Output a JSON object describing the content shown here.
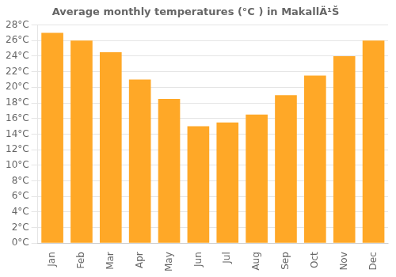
{
  "chart_data": {
    "type": "bar",
    "title": "Average monthly temperatures (°C ) in MakallÄ¹Š",
    "categories": [
      "Jan",
      "Feb",
      "Mar",
      "Apr",
      "May",
      "Jun",
      "Jul",
      "Aug",
      "Sep",
      "Oct",
      "Nov",
      "Dec"
    ],
    "values": [
      27.0,
      26.0,
      24.5,
      21.0,
      18.5,
      15.0,
      15.5,
      16.5,
      19.0,
      21.5,
      24.0,
      26.0
    ],
    "color": "#FFA827",
    "ylim": [
      0,
      28
    ],
    "yticks": [
      {
        "value": 0,
        "label": "0°C"
      },
      {
        "value": 2,
        "label": "2°C"
      },
      {
        "value": 4,
        "label": "4°C"
      },
      {
        "value": 6,
        "label": "6°C"
      },
      {
        "value": 8,
        "label": "8°C"
      },
      {
        "value": 10,
        "label": "10°C"
      },
      {
        "value": 12,
        "label": "12°C"
      },
      {
        "value": 14,
        "label": "14°C"
      },
      {
        "value": 16,
        "label": "16°C"
      },
      {
        "value": 18,
        "label": "18°C"
      },
      {
        "value": 20,
        "label": "20°C"
      },
      {
        "value": 22,
        "label": "22°C"
      },
      {
        "value": 24,
        "label": "24°C"
      },
      {
        "value": 26,
        "label": "26°C"
      },
      {
        "value": 28,
        "label": "28°C"
      }
    ],
    "grid": true
  }
}
